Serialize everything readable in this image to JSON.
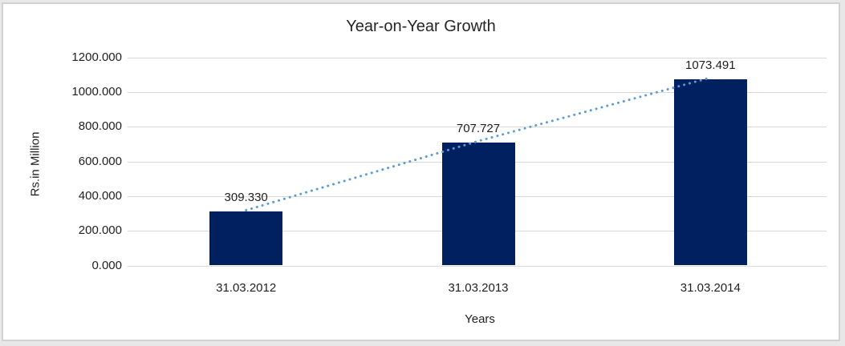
{
  "chart_data": {
    "type": "bar",
    "title": "Year-on-Year Growth",
    "xlabel": "Years",
    "ylabel": "Rs.in Million",
    "categories": [
      "31.03.2012",
      "31.03.2013",
      "31.03.2014"
    ],
    "values": [
      309.33,
      707.727,
      1073.491
    ],
    "data_labels": [
      "309.330",
      "707.727",
      "1073.491"
    ],
    "y_tick_labels": [
      "1200.000",
      "1000.000",
      "800.000",
      "600.000",
      "400.000",
      "200.000",
      "0.000"
    ],
    "ylim": [
      0,
      1200
    ],
    "grid": true,
    "legend_position": "none",
    "bar_color": "#002060",
    "gridline_color": "#d9d9d9",
    "trendline": {
      "style": "dotted",
      "color": "#5B9BD5",
      "values": [
        309.33,
        707.727,
        1073.491
      ]
    }
  }
}
